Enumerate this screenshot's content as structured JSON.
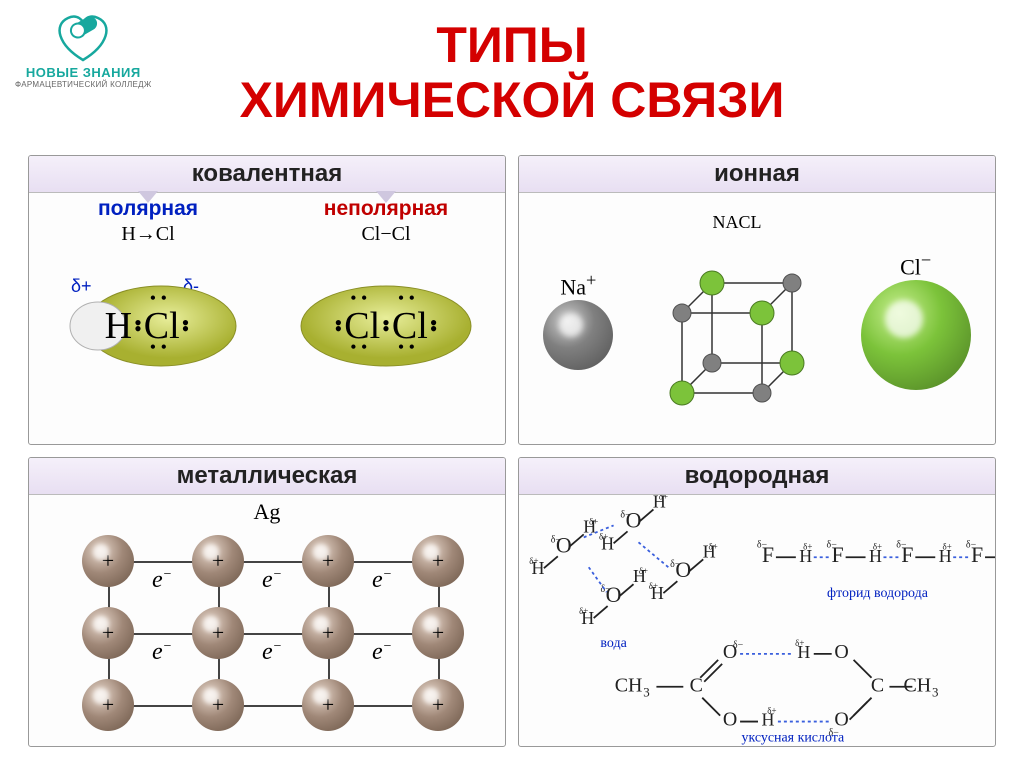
{
  "logo": {
    "text": "НОВЫЕ ЗНАНИЯ",
    "sub": "ФАРМАЦЕВТИЧЕСКИЙ КОЛЛЕДЖ",
    "color1": "#17a89e",
    "color2": "#0a7a72",
    "text_color": "#17a89e",
    "sub_color": "#666666"
  },
  "title": {
    "line1": "ТИПЫ",
    "line2": "ХИМИЧЕСКОЙ СВЯЗИ",
    "color": "#d40000",
    "fontsize": 50
  },
  "header_fontsize": 24,
  "header_color": "#222222",
  "covalent": {
    "header": "ковалентная",
    "polar": {
      "label": "полярная",
      "label_color": "#0020c0",
      "formula": "H→Cl",
      "delta_plus": "δ+",
      "delta_minus": "δ-",
      "delta_color": "#0020c0",
      "atom1": "H",
      "atom2": "Cl",
      "blob_color": "#c6cf3a",
      "blob_stroke": "#8a8f26"
    },
    "nonpolar": {
      "label": "неполярная",
      "label_color": "#c00000",
      "formula": "Cl−Cl",
      "atom1": "Cl",
      "atom2": "Cl",
      "blob_color": "#c6cf3a",
      "blob_stroke": "#8a8f26"
    },
    "sub_fontsize": 21,
    "arrow_color": "#cfc7df"
  },
  "ionic": {
    "header": "ионная",
    "na_label": "Na",
    "na_sup": "+",
    "cl_label": "Cl",
    "cl_sup": "−",
    "nacl_label": "NACL",
    "na_color": "#808080",
    "na_dark": "#505050",
    "cl_color": "#7cc33a",
    "cl_dark": "#4a7a22",
    "lattice_line": "#333333",
    "na_size": 70,
    "cl_size": 110
  },
  "metallic": {
    "header": "металлическая",
    "element": "Ag",
    "sphere_color": "#a08878",
    "sphere_dark": "#6a5545",
    "plus": "+",
    "electron": "e",
    "electron_sup": "−",
    "line_color": "#444444",
    "rows": 3,
    "cols": 4
  },
  "hydrogen": {
    "header": "водородная",
    "water_label": "вода",
    "hf_label": "фторид водорода",
    "acid_label": "уксусная кислота",
    "label_color": "#0020c0",
    "label_fontsize": 14,
    "O": "O",
    "H": "H",
    "F": "F",
    "C": "C",
    "ch3": "CH",
    "ch3_sub": "3",
    "delta_plus": "δ+",
    "delta_minus": "δ−",
    "hbond_color": "#3a5fdd",
    "bond_color": "#222222"
  }
}
